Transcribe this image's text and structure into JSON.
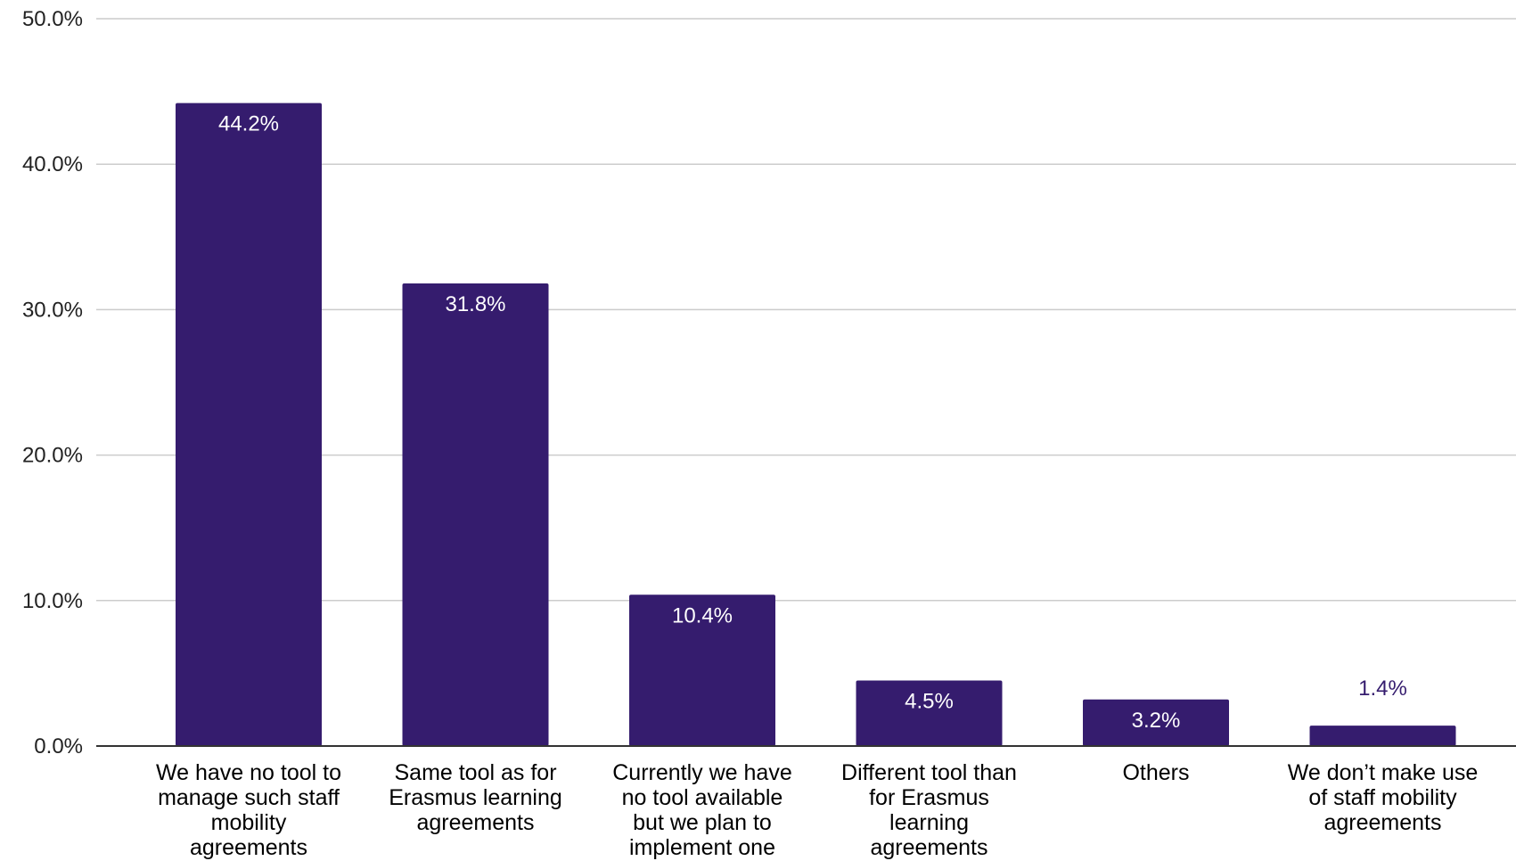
{
  "chart_data": {
    "type": "bar",
    "title": "",
    "xlabel": "",
    "ylabel": "",
    "ylim": [
      0,
      50
    ],
    "y_ticks": [
      "0.0%",
      "10.0%",
      "20.0%",
      "30.0%",
      "40.0%",
      "50.0%"
    ],
    "grid": true,
    "legend": "none",
    "bar_color": "#351C6E",
    "categories": [
      [
        "We have no tool to",
        "manage such staff",
        "mobility",
        "agreements"
      ],
      [
        "Same tool as for",
        "Erasmus learning",
        "agreements"
      ],
      [
        "Currently we have",
        "no tool available",
        "but we plan to",
        "implement one"
      ],
      [
        "Different tool than",
        "for Erasmus",
        "learning",
        "agreements"
      ],
      [
        "Others"
      ],
      [
        "We don’t make use",
        "of staff mobility",
        "agreements"
      ]
    ],
    "values": [
      44.2,
      31.8,
      10.4,
      4.5,
      3.2,
      1.4
    ],
    "data_labels": [
      "44.2%",
      "31.8%",
      "10.4%",
      "4.5%",
      "3.2%",
      "1.4%"
    ]
  }
}
